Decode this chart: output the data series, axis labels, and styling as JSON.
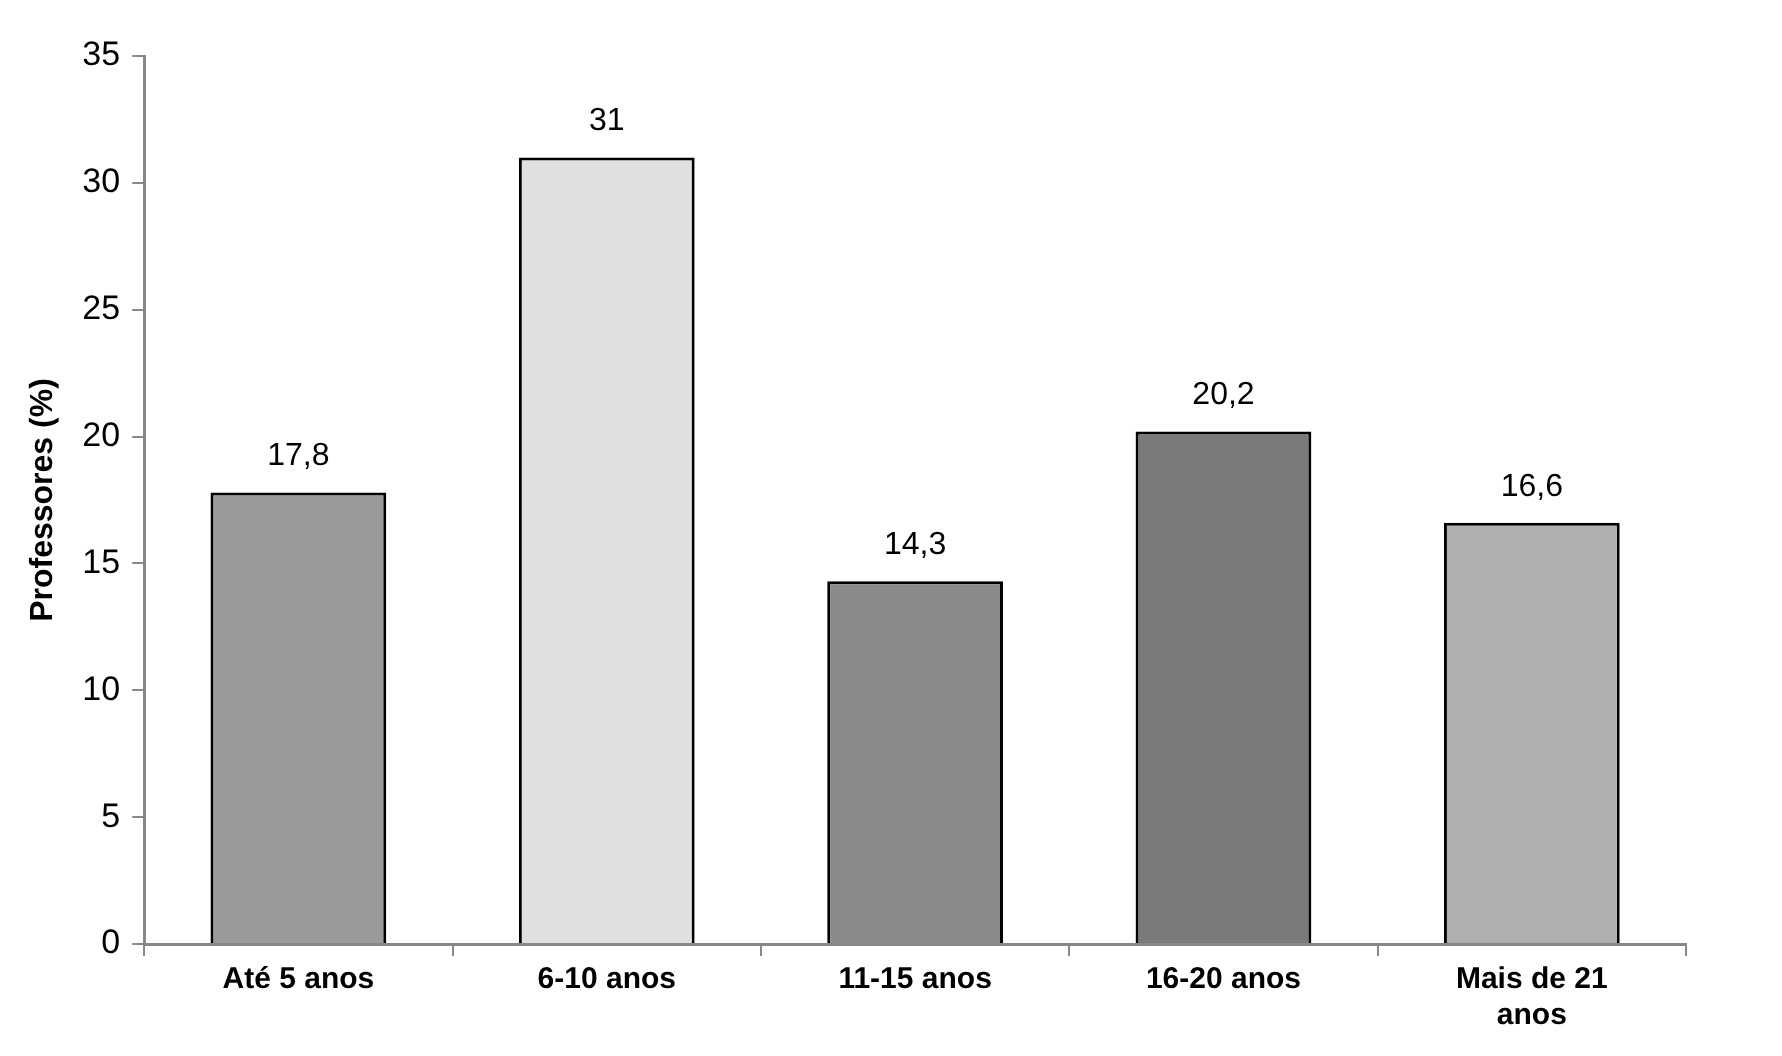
{
  "chart_data": {
    "type": "bar",
    "ylabel": "Professores (%)",
    "categories": [
      "Até 5 anos",
      "6-10 anos",
      "11-15 anos",
      "16-20 anos",
      "Mais de 21 anos"
    ],
    "values": [
      17.8,
      31,
      14.3,
      20.2,
      16.6
    ],
    "value_labels": [
      "17,8",
      "31",
      "14,3",
      "20,2",
      "16,6"
    ],
    "colors": [
      "#9a9a9a",
      "#e0e0e0",
      "#8a8a8a",
      "#7a7a7a",
      "#b0b0b0"
    ],
    "ylim": [
      0,
      35
    ],
    "yticks": [
      0,
      5,
      10,
      15,
      20,
      25,
      30,
      35
    ],
    "grid": false,
    "legend": false
  }
}
